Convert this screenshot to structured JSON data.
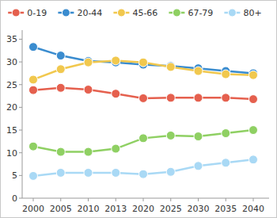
{
  "chart_data": {
    "type": "line",
    "categories": [
      "2000",
      "2005",
      "2010",
      "2013",
      "2020",
      "2025",
      "2030",
      "2035",
      "2040"
    ],
    "series": [
      {
        "name": "0-19",
        "color": "#e5604e",
        "values": [
          23.8,
          24.3,
          23.9,
          23.0,
          22.0,
          22.1,
          22.1,
          22.1,
          21.8
        ]
      },
      {
        "name": "20-44",
        "color": "#3a8ccf",
        "values": [
          33.3,
          31.4,
          30.2,
          29.9,
          29.4,
          29.1,
          28.6,
          28.0,
          27.5
        ]
      },
      {
        "name": "45-66",
        "color": "#f1c84e",
        "values": [
          26.1,
          28.4,
          29.9,
          30.3,
          29.9,
          28.9,
          28.0,
          27.3,
          27.1
        ]
      },
      {
        "name": "67-79",
        "color": "#8fd063",
        "values": [
          11.4,
          10.2,
          10.2,
          10.9,
          13.2,
          13.8,
          13.6,
          14.3,
          15.0
        ]
      },
      {
        "name": "80+",
        "color": "#a9d9f5",
        "values": [
          4.9,
          5.6,
          5.6,
          5.6,
          5.3,
          5.8,
          7.1,
          7.8,
          8.5
        ]
      }
    ],
    "ylim": [
      0,
      37
    ],
    "yticks": [
      0,
      5,
      10,
      15,
      20,
      25,
      30,
      35
    ],
    "grid": false,
    "legend": "top",
    "marker": "circle"
  }
}
